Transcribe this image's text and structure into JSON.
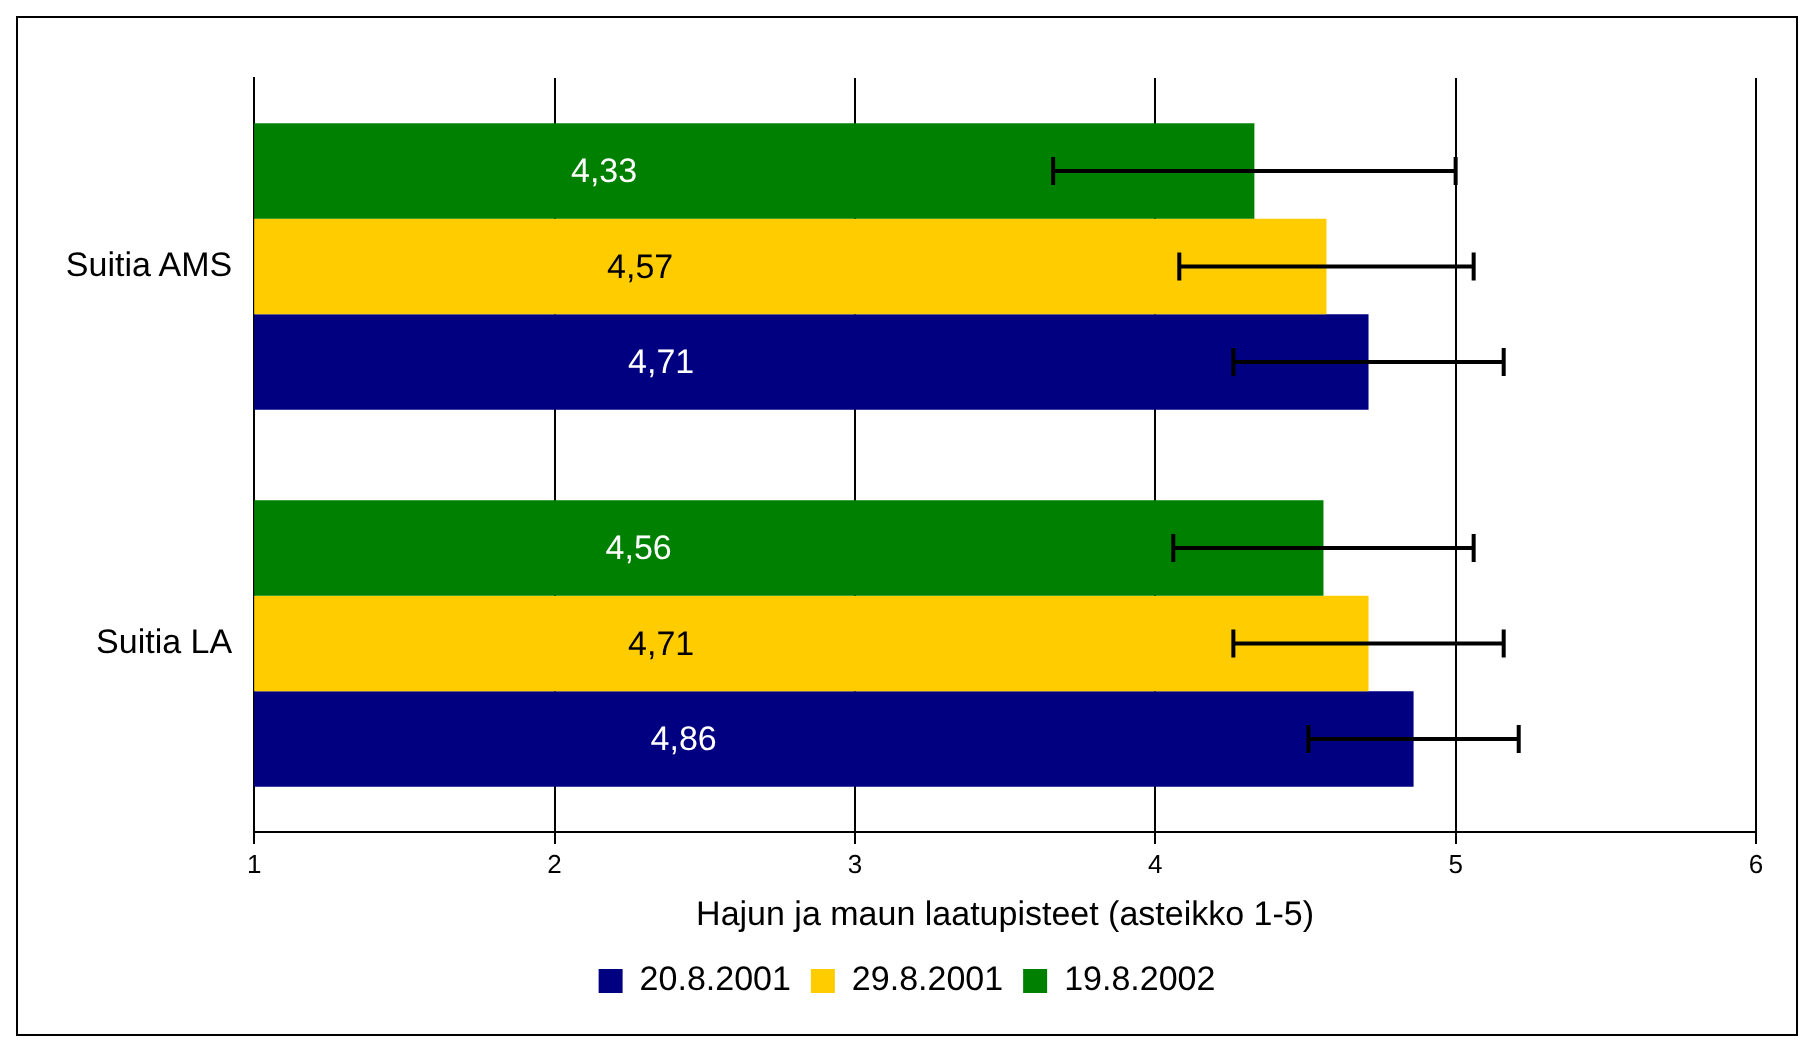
{
  "chart_data": {
    "type": "bar",
    "orientation": "horizontal",
    "xlabel": "Hajun ja maun laatupisteet (asteikko 1-5)",
    "categories": [
      "Suitia AMS",
      "Suitia LA"
    ],
    "series": [
      {
        "name": "20.8.2001",
        "color": "#000080",
        "values": [
          4.71,
          4.86
        ],
        "errors": [
          0.45,
          0.35
        ],
        "value_labels": [
          "4,71",
          "4,86"
        ]
      },
      {
        "name": "29.8.2001",
        "color": "#ffcc00",
        "values": [
          4.57,
          4.71
        ],
        "errors": [
          0.49,
          0.45
        ],
        "value_labels": [
          "4,57",
          "4,71"
        ]
      },
      {
        "name": "19.8.2002",
        "color": "#008000",
        "values": [
          4.33,
          4.56
        ],
        "errors": [
          0.67,
          0.5
        ],
        "value_labels": [
          "4,33",
          "4,56"
        ]
      }
    ],
    "xlim": [
      1,
      6
    ],
    "xticks": [
      1,
      2,
      3,
      4,
      5,
      6
    ],
    "grid": "x",
    "legend": "bottom"
  }
}
